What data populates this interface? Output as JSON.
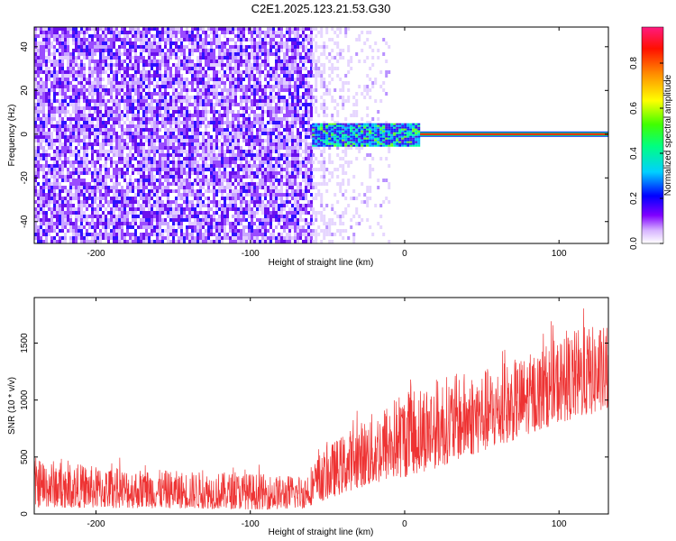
{
  "chart_data": [
    {
      "type": "heatmap",
      "title": "C2E1.2025.123.21.53.G30",
      "xlabel": "Height of straight line (km)",
      "ylabel": "Frequency (Hz)",
      "xlim": [
        -240,
        132
      ],
      "ylim": [
        -50,
        49
      ],
      "x_ticks": [
        -200,
        -100,
        0,
        100
      ],
      "x_tick_labels": [
        "-200",
        "-100",
        "0",
        "100"
      ],
      "y_ticks": [
        -40,
        -20,
        0,
        20,
        40
      ],
      "y_tick_labels": [
        "-40",
        "-20",
        "0",
        "20",
        "40"
      ],
      "colorbar": {
        "label": "Normalized spectral amplitude",
        "range": [
          0,
          0.96
        ],
        "ticks": [
          0.0,
          0.2,
          0.4,
          0.6,
          0.8
        ],
        "tick_labels": [
          "0.0",
          "0.2",
          "0.4",
          "0.6",
          "0.8"
        ]
      },
      "regions": [
        {
          "x_from": -240,
          "x_to": -60,
          "freq_from": -50,
          "freq_to": 49,
          "amplitude": 0.1
        },
        {
          "x_from": -60,
          "x_to": -10,
          "freq_from": -50,
          "freq_to": 49,
          "amplitude": 0.03
        },
        {
          "x_from": -60,
          "x_to": 10,
          "freq_from": -5,
          "freq_to": 5,
          "amplitude": 0.3
        },
        {
          "x_from": 10,
          "x_to": 132,
          "freq_from": -1,
          "freq_to": 1,
          "amplitude": 0.9
        }
      ],
      "grid": false,
      "legend": "colorbar-right"
    },
    {
      "type": "line",
      "xlabel": "Height of straight line (km)",
      "ylabel": "SNR (10 * v/v)",
      "xlim": [
        -240,
        132
      ],
      "ylim": [
        0,
        1900
      ],
      "x_ticks": [
        -200,
        -100,
        0,
        100
      ],
      "x_tick_labels": [
        "-200",
        "-100",
        "0",
        "100"
      ],
      "y_ticks": [
        0,
        500,
        1000,
        1500
      ],
      "y_tick_labels": [
        "0",
        "500",
        "1000",
        "1500"
      ],
      "series": [
        {
          "color": "#ee3333",
          "trend_x": [
            -240,
            -200,
            -150,
            -100,
            -80,
            -65,
            -60,
            -50,
            -40,
            -30,
            -20,
            -10,
            0,
            20,
            40,
            60,
            80,
            100,
            115,
            132
          ],
          "trend_low": [
            60,
            50,
            50,
            40,
            40,
            50,
            80,
            130,
            180,
            230,
            250,
            300,
            320,
            400,
            500,
            580,
            700,
            800,
            850,
            900
          ],
          "trend_high": [
            500,
            420,
            380,
            360,
            340,
            350,
            450,
            600,
            700,
            800,
            900,
            1000,
            1100,
            1200,
            1250,
            1300,
            1400,
            1550,
            1650,
            1650
          ]
        }
      ],
      "grid": false,
      "legend": "none"
    }
  ]
}
